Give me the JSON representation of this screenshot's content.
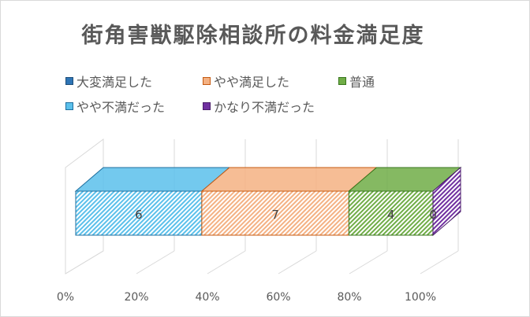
{
  "chart_data": {
    "type": "bar",
    "orientation": "horizontal",
    "stacked": "percent",
    "three_d": true,
    "title": "街角害獣駆除相談所の料金満足度",
    "categories": [
      ""
    ],
    "series": [
      {
        "name": "大変満足した",
        "values": [
          0
        ],
        "label": "",
        "color": "#2e75b6",
        "edge": "#1f4e79"
      },
      {
        "name": "やや満足した",
        "values": [
          7
        ],
        "label": "7",
        "color": "#f4b183",
        "edge": "#c55a11"
      },
      {
        "name": "普通",
        "values": [
          4
        ],
        "label": "4",
        "color": "#70ad47",
        "edge": "#38761d"
      },
      {
        "name": "やや不満だった",
        "values": [
          6
        ],
        "label": "6",
        "color": "#5bc0eb",
        "edge": "#1f6f9f"
      },
      {
        "name": "かなり不満だった",
        "values": [
          0
        ],
        "label": "0",
        "color": "#7030a0",
        "edge": "#4b1d6b"
      }
    ],
    "draw_order": [
      3,
      1,
      2,
      4
    ],
    "x_ticks": [
      "0%",
      "20%",
      "40%",
      "60%",
      "80%",
      "100%"
    ],
    "xlim": [
      0,
      1
    ],
    "grid": true,
    "legend_position": "top"
  }
}
